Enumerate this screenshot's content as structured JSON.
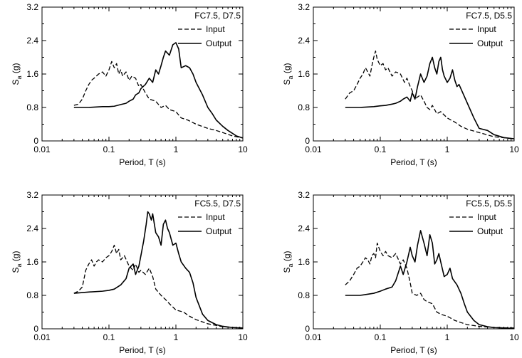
{
  "chart_data": [
    {
      "type": "line",
      "title": "FC7.5, D7.5",
      "xlabel": "Period, T (s)",
      "ylabel": "S_a (g)",
      "x_scale": "log",
      "xlim": [
        0.01,
        10
      ],
      "ylim": [
        0,
        3.2
      ],
      "x_ticks": [
        0.01,
        0.1,
        1,
        10
      ],
      "x_tick_labels": [
        "0.01",
        "0.1",
        "1",
        "10"
      ],
      "y_ticks": [
        0,
        0.8,
        1.6,
        2.4,
        3.2
      ],
      "y_tick_labels": [
        "0",
        "0.8",
        "1.6",
        "2.4",
        "3.2"
      ],
      "legend_position": "top-right",
      "series": [
        {
          "name": "Input",
          "style": "dashed",
          "x": [
            0.03,
            0.035,
            0.04,
            0.045,
            0.05,
            0.055,
            0.06,
            0.07,
            0.08,
            0.09,
            0.1,
            0.11,
            0.12,
            0.13,
            0.14,
            0.15,
            0.16,
            0.18,
            0.2,
            0.22,
            0.25,
            0.28,
            0.3,
            0.35,
            0.4,
            0.5,
            0.6,
            0.7,
            0.8,
            1,
            1.2,
            1.5,
            2,
            3,
            4,
            5,
            7,
            10
          ],
          "y": [
            0.85,
            0.88,
            1.0,
            1.2,
            1.35,
            1.45,
            1.5,
            1.6,
            1.65,
            1.55,
            1.7,
            1.9,
            1.75,
            1.85,
            1.6,
            1.7,
            1.55,
            1.65,
            1.45,
            1.55,
            1.5,
            1.3,
            1.35,
            1.15,
            1.0,
            0.95,
            0.8,
            0.85,
            0.75,
            0.7,
            0.55,
            0.5,
            0.4,
            0.3,
            0.25,
            0.2,
            0.12,
            0.07
          ]
        },
        {
          "name": "Output",
          "style": "solid",
          "x": [
            0.03,
            0.05,
            0.08,
            0.1,
            0.12,
            0.15,
            0.18,
            0.2,
            0.23,
            0.25,
            0.28,
            0.3,
            0.35,
            0.4,
            0.45,
            0.5,
            0.55,
            0.6,
            0.65,
            0.7,
            0.8,
            0.9,
            1.0,
            1.1,
            1.2,
            1.4,
            1.6,
            1.8,
            2,
            2.5,
            3,
            3.5,
            4,
            5,
            6,
            8,
            10
          ],
          "y": [
            0.8,
            0.8,
            0.82,
            0.82,
            0.83,
            0.87,
            0.9,
            0.95,
            1.0,
            1.1,
            1.15,
            1.25,
            1.35,
            1.5,
            1.4,
            1.7,
            1.6,
            1.8,
            2.0,
            2.15,
            2.05,
            2.3,
            2.35,
            2.2,
            1.75,
            1.8,
            1.75,
            1.6,
            1.4,
            1.1,
            0.8,
            0.65,
            0.5,
            0.35,
            0.25,
            0.12,
            0.07
          ]
        }
      ]
    },
    {
      "type": "line",
      "title": "FC7.5, D5.5",
      "xlabel": "Period, T (s)",
      "ylabel": "S_a (g)",
      "x_scale": "log",
      "xlim": [
        0.01,
        10
      ],
      "ylim": [
        0,
        3.2
      ],
      "x_ticks": [
        0.01,
        0.1,
        1,
        10
      ],
      "x_tick_labels": [
        "0.01",
        "0.1",
        "1",
        "10"
      ],
      "y_ticks": [
        0,
        0.8,
        1.6,
        2.4,
        3.2
      ],
      "y_tick_labels": [
        "0",
        "0.8",
        "1.6",
        "2.4",
        "3.2"
      ],
      "legend_position": "top-right",
      "series": [
        {
          "name": "Input",
          "style": "dashed",
          "x": [
            0.03,
            0.035,
            0.04,
            0.045,
            0.05,
            0.055,
            0.06,
            0.065,
            0.07,
            0.075,
            0.08,
            0.085,
            0.09,
            0.1,
            0.11,
            0.12,
            0.13,
            0.15,
            0.17,
            0.2,
            0.23,
            0.25,
            0.28,
            0.3,
            0.33,
            0.36,
            0.4,
            0.45,
            0.5,
            0.55,
            0.6,
            0.7,
            0.8,
            1,
            1.3,
            1.6,
            2,
            3,
            5,
            10
          ],
          "y": [
            1.0,
            1.15,
            1.2,
            1.35,
            1.5,
            1.6,
            1.75,
            1.65,
            1.55,
            1.8,
            2.0,
            2.15,
            1.95,
            1.8,
            1.85,
            1.7,
            1.75,
            1.55,
            1.65,
            1.6,
            1.4,
            1.5,
            1.3,
            1.2,
            1.0,
            1.05,
            1.1,
            0.95,
            0.8,
            0.75,
            0.85,
            0.65,
            0.7,
            0.55,
            0.45,
            0.35,
            0.28,
            0.2,
            0.1,
            0.05
          ]
        },
        {
          "name": "Output",
          "style": "solid",
          "x": [
            0.03,
            0.05,
            0.08,
            0.1,
            0.12,
            0.15,
            0.17,
            0.2,
            0.22,
            0.25,
            0.28,
            0.3,
            0.33,
            0.36,
            0.4,
            0.45,
            0.5,
            0.55,
            0.6,
            0.65,
            0.7,
            0.75,
            0.8,
            0.85,
            0.9,
            1.0,
            1.1,
            1.2,
            1.3,
            1.4,
            1.5,
            1.6,
            2,
            2.5,
            3,
            4,
            5,
            7,
            10
          ],
          "y": [
            0.8,
            0.8,
            0.82,
            0.84,
            0.85,
            0.88,
            0.9,
            0.95,
            1.0,
            1.05,
            0.95,
            1.15,
            1.0,
            1.3,
            1.6,
            1.4,
            1.55,
            1.85,
            2.0,
            1.75,
            1.6,
            1.9,
            2.0,
            1.7,
            1.55,
            1.4,
            1.5,
            1.7,
            1.45,
            1.3,
            1.35,
            1.25,
            0.9,
            0.55,
            0.3,
            0.25,
            0.15,
            0.08,
            0.05
          ]
        }
      ]
    },
    {
      "type": "line",
      "title": "FC5.5, D7.5",
      "xlabel": "Period, T (s)",
      "ylabel": "S_a (g)",
      "x_scale": "log",
      "xlim": [
        0.01,
        10
      ],
      "ylim": [
        0,
        3.2
      ],
      "x_ticks": [
        0.01,
        0.1,
        1,
        10
      ],
      "x_tick_labels": [
        "0.01",
        "0.1",
        "1",
        "10"
      ],
      "y_ticks": [
        0,
        0.8,
        1.6,
        2.4,
        3.2
      ],
      "y_tick_labels": [
        "0",
        "0.8",
        "1.6",
        "2.4",
        "3.2"
      ],
      "legend_position": "top-right",
      "series": [
        {
          "name": "Input",
          "style": "dashed",
          "x": [
            0.03,
            0.035,
            0.04,
            0.045,
            0.05,
            0.055,
            0.06,
            0.065,
            0.07,
            0.08,
            0.09,
            0.1,
            0.11,
            0.12,
            0.13,
            0.14,
            0.15,
            0.17,
            0.2,
            0.23,
            0.25,
            0.28,
            0.3,
            0.35,
            0.4,
            0.45,
            0.5,
            0.6,
            0.7,
            0.8,
            1,
            1.3,
            1.6,
            2,
            3,
            5,
            10
          ],
          "y": [
            0.85,
            0.9,
            1.0,
            1.4,
            1.55,
            1.65,
            1.5,
            1.6,
            1.65,
            1.6,
            1.7,
            1.75,
            1.85,
            2.0,
            1.8,
            1.9,
            1.65,
            1.75,
            1.5,
            1.4,
            1.55,
            1.35,
            1.4,
            1.3,
            1.45,
            1.25,
            0.95,
            0.8,
            0.7,
            0.6,
            0.45,
            0.4,
            0.3,
            0.22,
            0.12,
            0.05,
            0.02
          ]
        },
        {
          "name": "Output",
          "style": "solid",
          "x": [
            0.03,
            0.05,
            0.08,
            0.1,
            0.12,
            0.15,
            0.18,
            0.2,
            0.23,
            0.25,
            0.28,
            0.3,
            0.33,
            0.36,
            0.38,
            0.4,
            0.43,
            0.45,
            0.5,
            0.55,
            0.6,
            0.65,
            0.7,
            0.75,
            0.8,
            0.9,
            1.0,
            1.1,
            1.2,
            1.4,
            1.6,
            1.8,
            2,
            2.5,
            3,
            4,
            5,
            7,
            10
          ],
          "y": [
            0.85,
            0.88,
            0.9,
            0.92,
            0.95,
            1.05,
            1.2,
            1.45,
            1.55,
            1.3,
            1.5,
            1.75,
            2.1,
            2.5,
            2.8,
            2.75,
            2.6,
            2.75,
            2.3,
            2.2,
            2.0,
            2.5,
            2.6,
            2.4,
            2.3,
            2.0,
            2.05,
            1.8,
            1.6,
            1.45,
            1.35,
            1.1,
            0.75,
            0.35,
            0.2,
            0.1,
            0.06,
            0.03,
            0.02
          ]
        }
      ]
    },
    {
      "type": "line",
      "title": "FC5.5, D5.5",
      "xlabel": "Period, T (s)",
      "ylabel": "S_a (g)",
      "x_scale": "log",
      "xlim": [
        0.01,
        10
      ],
      "ylim": [
        0,
        3.2
      ],
      "x_ticks": [
        0.01,
        0.1,
        1,
        10
      ],
      "x_tick_labels": [
        "0.01",
        "0.1",
        "1",
        "10"
      ],
      "y_ticks": [
        0,
        0.8,
        1.6,
        2.4,
        3.2
      ],
      "y_tick_labels": [
        "0",
        "0.8",
        "1.6",
        "2.4",
        "3.2"
      ],
      "legend_position": "top-right",
      "series": [
        {
          "name": "Input",
          "style": "dashed",
          "x": [
            0.03,
            0.035,
            0.04,
            0.045,
            0.05,
            0.055,
            0.06,
            0.065,
            0.07,
            0.075,
            0.08,
            0.085,
            0.09,
            0.1,
            0.11,
            0.12,
            0.13,
            0.15,
            0.17,
            0.2,
            0.22,
            0.25,
            0.28,
            0.3,
            0.35,
            0.4,
            0.45,
            0.5,
            0.6,
            0.7,
            0.8,
            1,
            1.3,
            1.6,
            2,
            3,
            5,
            10
          ],
          "y": [
            1.05,
            1.15,
            1.3,
            1.45,
            1.5,
            1.6,
            1.7,
            1.65,
            1.55,
            1.75,
            1.8,
            1.7,
            2.05,
            1.85,
            1.75,
            1.85,
            1.75,
            1.7,
            1.8,
            1.55,
            1.65,
            1.45,
            1.1,
            0.85,
            0.8,
            0.85,
            0.7,
            0.65,
            0.6,
            0.4,
            0.35,
            0.3,
            0.2,
            0.15,
            0.1,
            0.06,
            0.03,
            0.02
          ]
        },
        {
          "name": "Output",
          "style": "solid",
          "x": [
            0.03,
            0.05,
            0.08,
            0.1,
            0.12,
            0.15,
            0.17,
            0.2,
            0.22,
            0.25,
            0.28,
            0.3,
            0.33,
            0.36,
            0.4,
            0.45,
            0.5,
            0.55,
            0.6,
            0.65,
            0.7,
            0.75,
            0.8,
            0.9,
            1.0,
            1.1,
            1.2,
            1.4,
            1.6,
            1.8,
            2,
            2.5,
            3,
            4,
            5,
            7,
            10
          ],
          "y": [
            0.8,
            0.8,
            0.85,
            0.9,
            0.95,
            1.0,
            1.15,
            1.5,
            1.3,
            1.6,
            1.95,
            1.75,
            1.6,
            2.0,
            2.35,
            2.05,
            1.75,
            2.25,
            2.05,
            1.55,
            1.65,
            1.8,
            1.6,
            1.25,
            1.3,
            1.45,
            1.2,
            1.05,
            0.85,
            0.6,
            0.4,
            0.2,
            0.1,
            0.05,
            0.03,
            0.02,
            0.01
          ]
        }
      ]
    }
  ]
}
